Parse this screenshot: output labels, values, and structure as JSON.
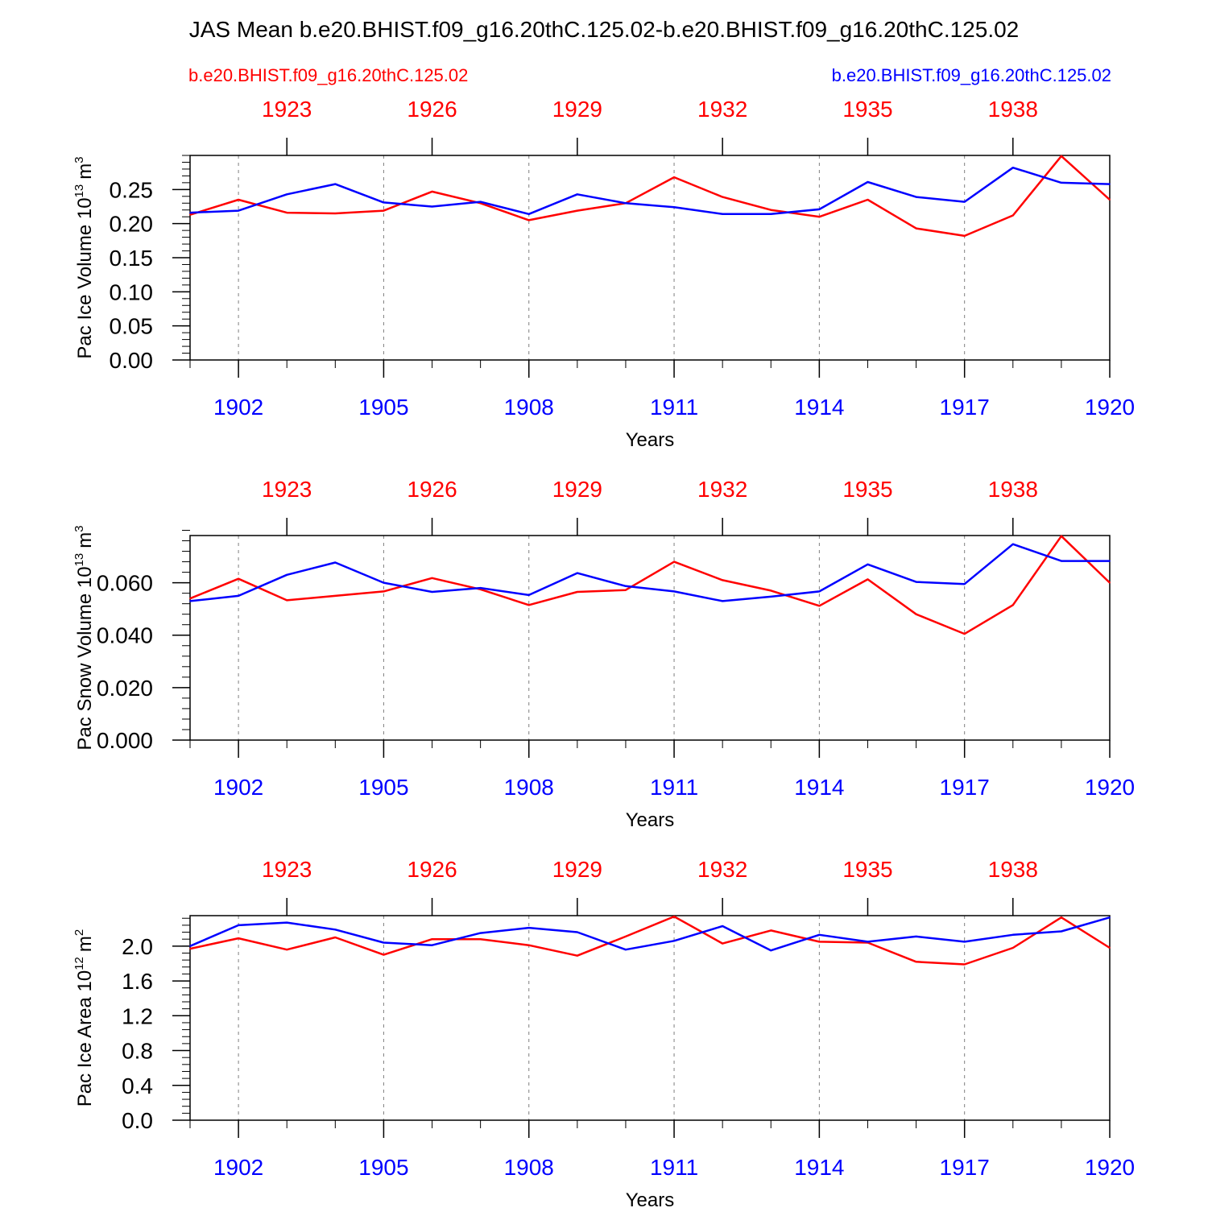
{
  "title": "JAS Mean b.e20.BHIST.f09_g16.20thC.125.02-b.e20.BHIST.f09_g16.20thC.125.02",
  "legend": {
    "left_label": "b.e20.BHIST.f09_g16.20thC.125.02",
    "right_label": "b.e20.BHIST.f09_g16.20thC.125.02"
  },
  "colors": {
    "series_a": "#ff0000",
    "series_b": "#0000ff",
    "axis": "#000000",
    "grid": "#7f7f7f"
  },
  "chart_data": [
    {
      "type": "line",
      "title": "",
      "ylabel_main": "Pac Ice Volume 10",
      "ylabel_exp": "13",
      "ylabel_unit": "m",
      "ylabel_unit_exp": "3",
      "xlabel": "Years",
      "ylim": [
        0,
        0.3
      ],
      "yticks": [
        0.0,
        0.05,
        0.1,
        0.15,
        0.2,
        0.25
      ],
      "ytick_labels": [
        "0.00",
        "0.05",
        "0.10",
        "0.15",
        "0.20",
        "0.25"
      ],
      "yminor_step": 0.01,
      "xlim": [
        1901,
        1920
      ],
      "bottom_ticks": [
        1902,
        1905,
        1908,
        1911,
        1914,
        1917,
        1920
      ],
      "bottom_tick_labels": [
        "1902",
        "1905",
        "1908",
        "1911",
        "1914",
        "1917",
        "1920"
      ],
      "top_ticks": [
        1923,
        1926,
        1929,
        1932,
        1935,
        1938
      ],
      "top_tick_labels": [
        "1923",
        "1926",
        "1929",
        "1932",
        "1935",
        "1938"
      ],
      "top_offset": 20,
      "series": [
        {
          "name": "b.e20.BHIST.f09_g16.20thC.125.02 (red, years 1921-1940)",
          "color": "#ff0000",
          "x": [
            1901,
            1902,
            1903,
            1904,
            1905,
            1906,
            1907,
            1908,
            1909,
            1910,
            1911,
            1912,
            1913,
            1914,
            1915,
            1916,
            1917,
            1918,
            1919,
            1920
          ],
          "values": [
            0.213,
            0.235,
            0.216,
            0.215,
            0.219,
            0.247,
            0.23,
            0.205,
            0.219,
            0.23,
            0.268,
            0.239,
            0.22,
            0.21,
            0.235,
            0.193,
            0.182,
            0.212,
            0.299,
            0.235
          ]
        },
        {
          "name": "b.e20.BHIST.f09_g16.20thC.125.02 (blue, years 1901-1920)",
          "color": "#0000ff",
          "x": [
            1901,
            1902,
            1903,
            1904,
            1905,
            1906,
            1907,
            1908,
            1909,
            1910,
            1911,
            1912,
            1913,
            1914,
            1915,
            1916,
            1917,
            1918,
            1919,
            1920
          ],
          "values": [
            0.216,
            0.219,
            0.243,
            0.258,
            0.231,
            0.225,
            0.232,
            0.214,
            0.243,
            0.23,
            0.224,
            0.214,
            0.214,
            0.221,
            0.261,
            0.239,
            0.232,
            0.282,
            0.26,
            0.258
          ]
        }
      ]
    },
    {
      "type": "line",
      "title": "",
      "ylabel_main": "Pac Snow Volume 10",
      "ylabel_exp": "13",
      "ylabel_unit": "m",
      "ylabel_unit_exp": "3",
      "xlabel": "Years",
      "ylim": [
        0,
        0.078
      ],
      "yticks": [
        0.0,
        0.02,
        0.04,
        0.06
      ],
      "ytick_labels": [
        "0.000",
        "0.020",
        "0.040",
        "0.060"
      ],
      "yminor_step": 0.004,
      "xlim": [
        1901,
        1920
      ],
      "bottom_ticks": [
        1902,
        1905,
        1908,
        1911,
        1914,
        1917,
        1920
      ],
      "bottom_tick_labels": [
        "1902",
        "1905",
        "1908",
        "1911",
        "1914",
        "1917",
        "1920"
      ],
      "top_ticks": [
        1923,
        1926,
        1929,
        1932,
        1935,
        1938
      ],
      "top_tick_labels": [
        "1923",
        "1926",
        "1929",
        "1932",
        "1935",
        "1938"
      ],
      "top_offset": 20,
      "series": [
        {
          "name": "b.e20.BHIST.f09_g16.20thC.125.02 (red, years 1921-1940)",
          "color": "#ff0000",
          "x": [
            1901,
            1902,
            1903,
            1904,
            1905,
            1906,
            1907,
            1908,
            1909,
            1910,
            1911,
            1912,
            1913,
            1914,
            1915,
            1916,
            1917,
            1918,
            1919,
            1920
          ],
          "values": [
            0.054,
            0.0615,
            0.0533,
            0.055,
            0.0567,
            0.0618,
            0.0575,
            0.0515,
            0.0565,
            0.0572,
            0.068,
            0.061,
            0.057,
            0.0512,
            0.0613,
            0.048,
            0.0405,
            0.0515,
            0.0778,
            0.06
          ]
        },
        {
          "name": "b.e20.BHIST.f09_g16.20thC.125.02 (blue, years 1901-1920)",
          "color": "#0000ff",
          "x": [
            1901,
            1902,
            1903,
            1904,
            1905,
            1906,
            1907,
            1908,
            1909,
            1910,
            1911,
            1912,
            1913,
            1914,
            1915,
            1916,
            1917,
            1918,
            1919,
            1920
          ],
          "values": [
            0.053,
            0.055,
            0.063,
            0.0677,
            0.06,
            0.0565,
            0.058,
            0.0553,
            0.0637,
            0.0587,
            0.0567,
            0.053,
            0.0547,
            0.0567,
            0.067,
            0.0603,
            0.0595,
            0.0747,
            0.0683,
            0.0683
          ]
        }
      ]
    },
    {
      "type": "line",
      "title": "",
      "ylabel_main": "Pac Ice Area 10",
      "ylabel_exp": "12",
      "ylabel_unit": "m",
      "ylabel_unit_exp": "2",
      "xlabel": "Years",
      "ylim": [
        0,
        2.35
      ],
      "yticks": [
        0.0,
        0.4,
        0.8,
        1.2,
        1.6,
        2.0
      ],
      "ytick_labels": [
        "0.0",
        "0.4",
        "0.8",
        "1.2",
        "1.6",
        "2.0"
      ],
      "yminor_step": 0.08,
      "xlim": [
        1901,
        1920
      ],
      "bottom_ticks": [
        1902,
        1905,
        1908,
        1911,
        1914,
        1917,
        1920
      ],
      "bottom_tick_labels": [
        "1902",
        "1905",
        "1908",
        "1911",
        "1914",
        "1917",
        "1920"
      ],
      "top_ticks": [
        1923,
        1926,
        1929,
        1932,
        1935,
        1938
      ],
      "top_tick_labels": [
        "1923",
        "1926",
        "1929",
        "1932",
        "1935",
        "1938"
      ],
      "top_offset": 20,
      "series": [
        {
          "name": "b.e20.BHIST.f09_g16.20thC.125.02 (red, years 1921-1940)",
          "color": "#ff0000",
          "x": [
            1901,
            1902,
            1903,
            1904,
            1905,
            1906,
            1907,
            1908,
            1909,
            1910,
            1911,
            1912,
            1913,
            1914,
            1915,
            1916,
            1917,
            1918,
            1919,
            1920
          ],
          "values": [
            1.97,
            2.09,
            1.96,
            2.1,
            1.9,
            2.08,
            2.08,
            2.01,
            1.89,
            2.11,
            2.34,
            2.03,
            2.18,
            2.05,
            2.04,
            1.82,
            1.79,
            1.98,
            2.33,
            1.98
          ]
        },
        {
          "name": "b.e20.BHIST.f09_g16.20thC.125.02 (blue, years 1901-1920)",
          "color": "#0000ff",
          "x": [
            1901,
            1902,
            1903,
            1904,
            1905,
            1906,
            1907,
            1908,
            1909,
            1910,
            1911,
            1912,
            1913,
            1914,
            1915,
            1916,
            1917,
            1918,
            1919,
            1920
          ],
          "values": [
            2.0,
            2.24,
            2.27,
            2.19,
            2.04,
            2.01,
            2.15,
            2.21,
            2.16,
            1.96,
            2.06,
            2.23,
            1.95,
            2.13,
            2.05,
            2.11,
            2.05,
            2.13,
            2.17,
            2.33
          ]
        }
      ]
    }
  ]
}
